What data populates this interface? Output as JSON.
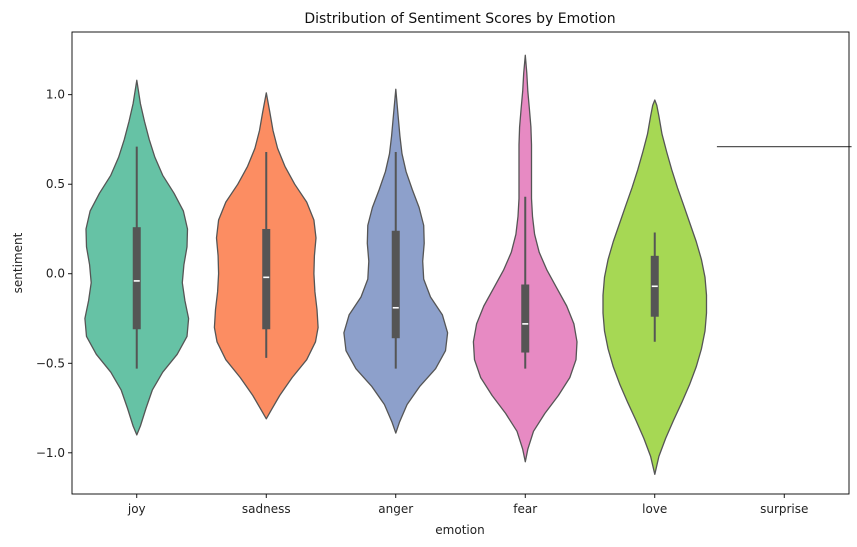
{
  "chart_data": {
    "type": "violin",
    "title": "Distribution of Sentiment Scores by Emotion",
    "xlabel": "emotion",
    "ylabel": "sentiment",
    "ylim": [
      -1.23,
      1.35
    ],
    "yticks": [
      -1.0,
      -0.5,
      0.0,
      0.5,
      1.0
    ],
    "ytick_labels": [
      "−1.0",
      "−0.5",
      "0.0",
      "0.5",
      "1.0"
    ],
    "categories": [
      "joy",
      "sadness",
      "anger",
      "fear",
      "love",
      "surprise"
    ],
    "series": [
      {
        "category": "joy",
        "color": "#66c2a5",
        "q1": -0.31,
        "median": -0.04,
        "q3": 0.26,
        "whisker_low": -0.53,
        "whisker_high": 0.71,
        "density": [
          [
            -0.9,
            0.0
          ],
          [
            -0.85,
            0.07
          ],
          [
            -0.75,
            0.18
          ],
          [
            -0.65,
            0.3
          ],
          [
            -0.55,
            0.5
          ],
          [
            -0.45,
            0.78
          ],
          [
            -0.35,
            0.97
          ],
          [
            -0.25,
            1.0
          ],
          [
            -0.15,
            0.93
          ],
          [
            -0.05,
            0.88
          ],
          [
            0.05,
            0.91
          ],
          [
            0.15,
            0.97
          ],
          [
            0.25,
            0.98
          ],
          [
            0.35,
            0.9
          ],
          [
            0.45,
            0.72
          ],
          [
            0.55,
            0.5
          ],
          [
            0.65,
            0.35
          ],
          [
            0.75,
            0.24
          ],
          [
            0.85,
            0.15
          ],
          [
            0.95,
            0.07
          ],
          [
            1.08,
            0.0
          ]
        ]
      },
      {
        "category": "sadness",
        "color": "#fc8d62",
        "q1": -0.31,
        "median": -0.02,
        "q3": 0.25,
        "whisker_low": -0.47,
        "whisker_high": 0.68,
        "density": [
          [
            -0.81,
            0.0
          ],
          [
            -0.76,
            0.1
          ],
          [
            -0.68,
            0.26
          ],
          [
            -0.58,
            0.5
          ],
          [
            -0.48,
            0.78
          ],
          [
            -0.38,
            0.95
          ],
          [
            -0.3,
            1.0
          ],
          [
            -0.2,
            0.98
          ],
          [
            -0.1,
            0.94
          ],
          [
            0.0,
            0.92
          ],
          [
            0.1,
            0.93
          ],
          [
            0.2,
            0.96
          ],
          [
            0.3,
            0.92
          ],
          [
            0.4,
            0.78
          ],
          [
            0.5,
            0.55
          ],
          [
            0.6,
            0.36
          ],
          [
            0.7,
            0.22
          ],
          [
            0.8,
            0.13
          ],
          [
            0.9,
            0.07
          ],
          [
            1.01,
            0.0
          ]
        ]
      },
      {
        "category": "anger",
        "color": "#8da0cb",
        "q1": -0.36,
        "median": -0.19,
        "q3": 0.24,
        "whisker_low": -0.53,
        "whisker_high": 0.68,
        "density": [
          [
            -0.89,
            0.0
          ],
          [
            -0.83,
            0.07
          ],
          [
            -0.73,
            0.22
          ],
          [
            -0.63,
            0.46
          ],
          [
            -0.53,
            0.77
          ],
          [
            -0.43,
            0.96
          ],
          [
            -0.33,
            1.0
          ],
          [
            -0.23,
            0.9
          ],
          [
            -0.13,
            0.67
          ],
          [
            -0.03,
            0.54
          ],
          [
            0.07,
            0.52
          ],
          [
            0.17,
            0.55
          ],
          [
            0.27,
            0.54
          ],
          [
            0.37,
            0.45
          ],
          [
            0.47,
            0.32
          ],
          [
            0.57,
            0.2
          ],
          [
            0.67,
            0.12
          ],
          [
            0.77,
            0.08
          ],
          [
            0.87,
            0.05
          ],
          [
            1.03,
            0.0
          ]
        ]
      },
      {
        "category": "fear",
        "color": "#e78ac3",
        "q1": -0.44,
        "median": -0.28,
        "q3": -0.06,
        "whisker_low": -0.53,
        "whisker_high": 0.43,
        "density": [
          [
            -1.05,
            0.0
          ],
          [
            -0.98,
            0.05
          ],
          [
            -0.88,
            0.16
          ],
          [
            -0.78,
            0.38
          ],
          [
            -0.68,
            0.64
          ],
          [
            -0.58,
            0.86
          ],
          [
            -0.48,
            0.98
          ],
          [
            -0.38,
            1.0
          ],
          [
            -0.28,
            0.94
          ],
          [
            -0.18,
            0.8
          ],
          [
            -0.08,
            0.61
          ],
          [
            0.02,
            0.42
          ],
          [
            0.12,
            0.27
          ],
          [
            0.22,
            0.18
          ],
          [
            0.32,
            0.14
          ],
          [
            0.42,
            0.12
          ],
          [
            0.52,
            0.12
          ],
          [
            0.62,
            0.12
          ],
          [
            0.72,
            0.12
          ],
          [
            0.82,
            0.11
          ],
          [
            0.92,
            0.08
          ],
          [
            1.02,
            0.05
          ],
          [
            1.12,
            0.03
          ],
          [
            1.22,
            0.0
          ]
        ]
      },
      {
        "category": "love",
        "color": "#a6d854",
        "q1": -0.24,
        "median": -0.07,
        "q3": 0.1,
        "whisker_low": -0.38,
        "whisker_high": 0.23,
        "density": [
          [
            -1.12,
            0.0
          ],
          [
            -1.02,
            0.08
          ],
          [
            -0.92,
            0.21
          ],
          [
            -0.82,
            0.36
          ],
          [
            -0.72,
            0.52
          ],
          [
            -0.62,
            0.67
          ],
          [
            -0.52,
            0.8
          ],
          [
            -0.42,
            0.9
          ],
          [
            -0.32,
            0.97
          ],
          [
            -0.22,
            1.0
          ],
          [
            -0.12,
            1.0
          ],
          [
            -0.02,
            0.97
          ],
          [
            0.08,
            0.9
          ],
          [
            0.18,
            0.8
          ],
          [
            0.28,
            0.68
          ],
          [
            0.38,
            0.56
          ],
          [
            0.48,
            0.44
          ],
          [
            0.58,
            0.33
          ],
          [
            0.68,
            0.23
          ],
          [
            0.78,
            0.14
          ],
          [
            0.88,
            0.08
          ],
          [
            0.94,
            0.04
          ],
          [
            0.97,
            0.0
          ]
        ]
      },
      {
        "category": "surprise",
        "color": "#ffd92f",
        "single_value": 0.71
      }
    ]
  }
}
